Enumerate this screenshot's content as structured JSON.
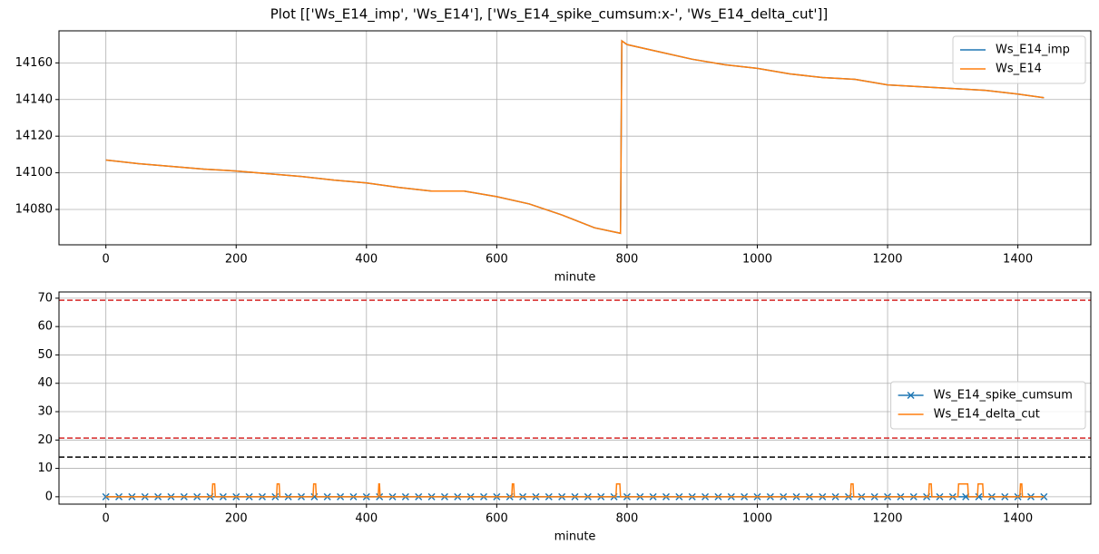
{
  "title": "Plot [['Ws_E14_imp', 'Ws_E14'], ['Ws_E14_spike_cumsum:x-', 'Ws_E14_delta_cut']]",
  "chart_data": [
    {
      "type": "line",
      "xlabel": "minute",
      "x": [
        0,
        50,
        100,
        150,
        200,
        250,
        300,
        350,
        400,
        450,
        500,
        550,
        600,
        650,
        700,
        750,
        790,
        792,
        800,
        850,
        900,
        950,
        1000,
        1050,
        1100,
        1150,
        1200,
        1250,
        1300,
        1350,
        1400,
        1440
      ],
      "series": [
        {
          "name": "Ws_E14_imp",
          "color": "#1f77b4",
          "values": [
            14107,
            14105,
            14103.5,
            14102,
            14101,
            14099.5,
            14098,
            14096,
            14094.5,
            14092,
            14090,
            14090,
            14087,
            14083,
            14077,
            14070,
            14067,
            14172,
            14170,
            14166,
            14162,
            14159,
            14157,
            14154,
            14152,
            14151,
            14148,
            14147,
            14146,
            14145,
            14143,
            14141
          ]
        },
        {
          "name": "Ws_E14",
          "color": "#ff7f0e",
          "values": [
            14107,
            14105,
            14103.5,
            14102,
            14101,
            14099.5,
            14098,
            14096,
            14094.5,
            14092,
            14090,
            14090,
            14087,
            14083,
            14077,
            14070,
            14067,
            14172,
            14170,
            14166,
            14162,
            14159,
            14157,
            14154,
            14152,
            14151,
            14148,
            14147,
            14146,
            14145,
            14143,
            14141
          ]
        }
      ],
      "xlim": [
        -72,
        1512
      ],
      "xticks": [
        0,
        200,
        400,
        600,
        800,
        1000,
        1200,
        1400
      ],
      "ylim": [
        14060.7,
        14177.5
      ],
      "yticks": [
        14080,
        14100,
        14120,
        14140,
        14160
      ],
      "grid": true,
      "legend": "upper right"
    },
    {
      "type": "line",
      "xlabel": "minute",
      "series": [
        {
          "name": "Ws_E14_spike_cumsum",
          "color": "#1f77b4",
          "marker": "x",
          "x": [
            0,
            20,
            40,
            60,
            80,
            100,
            120,
            140,
            160,
            180,
            200,
            220,
            240,
            260,
            280,
            300,
            320,
            340,
            360,
            380,
            400,
            420,
            440,
            460,
            480,
            500,
            520,
            540,
            560,
            580,
            600,
            620,
            640,
            660,
            680,
            700,
            720,
            740,
            760,
            780,
            800,
            820,
            840,
            860,
            880,
            900,
            920,
            940,
            960,
            980,
            1000,
            1020,
            1040,
            1060,
            1080,
            1100,
            1120,
            1140,
            1160,
            1180,
            1200,
            1220,
            1240,
            1260,
            1280,
            1300,
            1320,
            1340,
            1360,
            1380,
            1400,
            1420,
            1440
          ],
          "values": [
            0,
            0,
            0,
            0,
            0,
            0,
            0,
            0,
            0,
            0,
            0,
            0,
            0,
            0,
            0,
            0,
            0,
            0,
            0,
            0,
            0,
            0,
            0,
            0,
            0,
            0,
            0,
            0,
            0,
            0,
            0,
            0,
            0,
            0,
            0,
            0,
            0,
            0,
            0,
            0,
            0,
            0,
            0,
            0,
            0,
            0,
            0,
            0,
            0,
            0,
            0,
            0,
            0,
            0,
            0,
            0,
            0,
            0,
            0,
            0,
            0,
            0,
            0,
            0,
            0,
            0,
            0,
            0,
            0,
            0,
            0,
            0,
            0
          ]
        },
        {
          "name": "Ws_E14_delta_cut",
          "color": "#ff7f0e",
          "x": [
            0,
            163,
            164,
            167,
            168,
            262,
            263,
            266,
            267,
            318,
            319,
            322,
            323,
            418,
            419,
            420,
            421,
            623,
            624,
            626,
            627,
            783,
            784,
            789,
            790,
            1143,
            1144,
            1147,
            1148,
            1263,
            1264,
            1267,
            1268,
            1308,
            1309,
            1323,
            1324,
            1338,
            1339,
            1346,
            1347,
            1403,
            1404,
            1406,
            1407,
            1440
          ],
          "values": [
            0,
            0,
            4.5,
            4.5,
            0,
            0,
            4.5,
            4.5,
            0,
            0,
            4.5,
            4.5,
            0,
            0,
            4.5,
            4.5,
            0,
            0,
            4.5,
            4.5,
            0,
            0,
            4.5,
            4.5,
            0,
            0,
            4.5,
            4.5,
            0,
            0,
            4.5,
            4.5,
            0,
            0,
            4.5,
            4.5,
            0,
            0,
            4.5,
            4.5,
            0,
            0,
            4.5,
            4.5,
            0,
            0
          ]
        }
      ],
      "hlines": [
        {
          "value": 69.3,
          "color": "#d62728"
        },
        {
          "value": 20.7,
          "color": "#d62728"
        },
        {
          "value": 14,
          "color": "#000000"
        }
      ],
      "xlim": [
        -72,
        1512
      ],
      "xticks": [
        0,
        200,
        400,
        600,
        800,
        1000,
        1200,
        1400
      ],
      "ylim": [
        -2.6,
        72.2
      ],
      "yticks": [
        0,
        10,
        20,
        30,
        40,
        50,
        60,
        70
      ],
      "grid": true,
      "legend": "center right"
    }
  ]
}
